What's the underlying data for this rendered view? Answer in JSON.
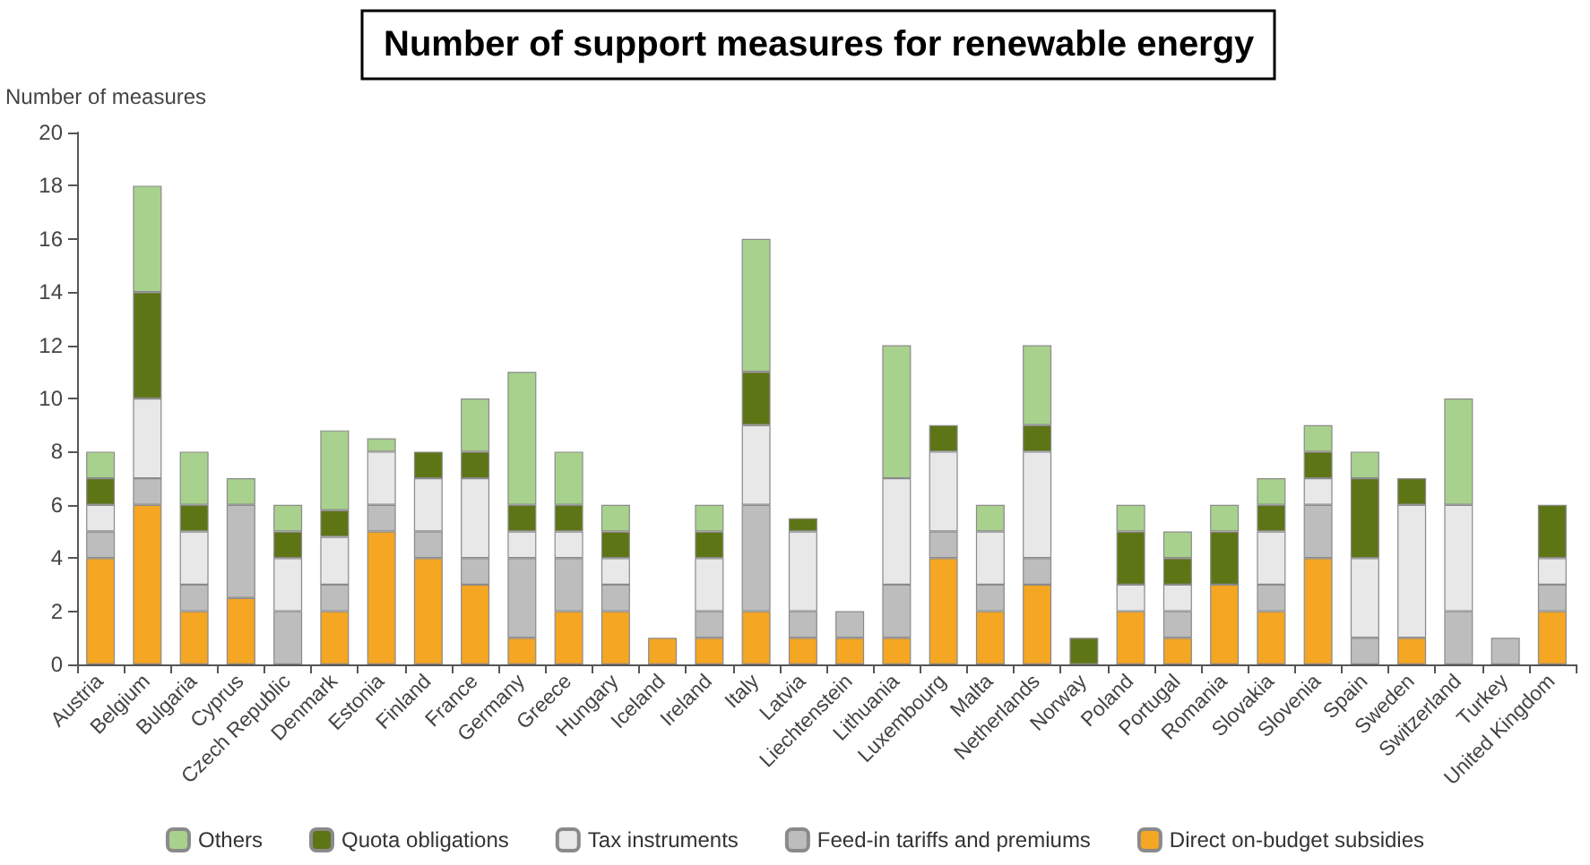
{
  "chart_data": {
    "type": "bar",
    "title": "Number of support measures for renewable energy",
    "ylabel": "Number of measures",
    "stacked": true,
    "grid": false,
    "legend": "bottom",
    "categories": [
      "Austria",
      "Belgium",
      "Bulgaria",
      "Cyprus",
      "Czech Republic",
      "Denmark",
      "Estonia",
      "Finland",
      "France",
      "Germany",
      "Greece",
      "Hungary",
      "Iceland",
      "Ireland",
      "Italy",
      "Latvia",
      "Liechtenstein",
      "Lithuania",
      "Luxembourg",
      "Malta",
      "Netherlands",
      "Norway",
      "Poland",
      "Portugal",
      "Romania",
      "Slovakia",
      "Slovenia",
      "Spain",
      "Sweden",
      "Switzerland",
      "Turkey",
      "United Kingdom"
    ],
    "ylim": [
      0,
      20
    ],
    "yticks": [
      0,
      2,
      4,
      6,
      8,
      10,
      12,
      14,
      16,
      18,
      20
    ],
    "series": [
      {
        "name": "Direct on-budget subsidies",
        "color": "#f5a623",
        "values": [
          4,
          6,
          2,
          2.5,
          0,
          2,
          5,
          4,
          3,
          1,
          2,
          2,
          1,
          1,
          2,
          1,
          1,
          1,
          4,
          2,
          3,
          0,
          2,
          1,
          3,
          2,
          4,
          0,
          1,
          0,
          0,
          2
        ]
      },
      {
        "name": "Feed-in tariffs and premiums",
        "color": "#bdbdbd",
        "values": [
          1,
          1,
          1,
          3.5,
          2,
          1,
          1,
          1,
          1,
          3,
          2,
          1,
          0,
          1,
          4,
          1,
          1,
          2,
          1,
          1,
          1,
          0,
          0,
          1,
          0,
          1,
          2,
          1,
          0,
          2,
          1,
          1
        ]
      },
      {
        "name": "Tax instruments",
        "color": "#e8e8e8",
        "values": [
          1,
          3,
          2,
          0,
          2,
          1.8,
          2,
          2,
          3,
          1,
          1,
          1,
          0,
          2,
          3,
          3,
          0,
          4,
          3,
          2,
          4,
          0,
          1,
          1,
          0,
          2,
          1,
          3,
          5,
          4,
          0,
          1
        ]
      },
      {
        "name": "Quota obligations",
        "color": "#5e7516",
        "values": [
          1,
          4,
          1,
          0,
          1,
          1,
          0,
          1,
          1,
          1,
          1,
          1,
          0,
          1,
          2,
          0.5,
          0,
          0,
          1,
          0,
          1,
          1,
          2,
          1,
          2,
          1,
          1,
          3,
          1,
          0,
          0,
          2
        ]
      },
      {
        "name": "Others",
        "color": "#a9d18e",
        "values": [
          1,
          4,
          2,
          1,
          1,
          3,
          0.5,
          0,
          2,
          5,
          2,
          1,
          0,
          1,
          5,
          0,
          0,
          5,
          0,
          1,
          3,
          0,
          1,
          1,
          1,
          1,
          1,
          1,
          0,
          4,
          0,
          0
        ]
      }
    ]
  }
}
